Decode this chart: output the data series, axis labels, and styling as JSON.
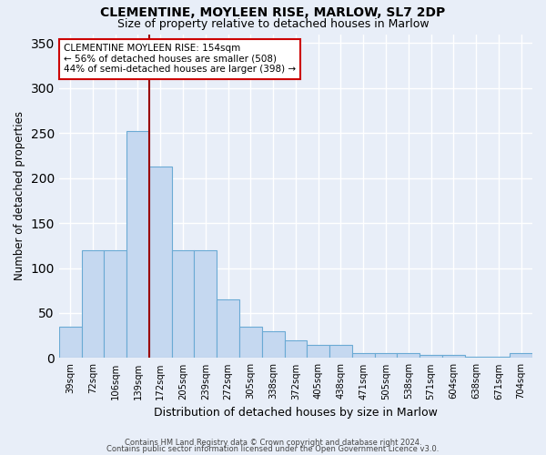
{
  "title1": "CLEMENTINE, MOYLEEN RISE, MARLOW, SL7 2DP",
  "title2": "Size of property relative to detached houses in Marlow",
  "xlabel": "Distribution of detached houses by size in Marlow",
  "ylabel": "Number of detached properties",
  "bar_labels": [
    "39sqm",
    "72sqm",
    "106sqm",
    "139sqm",
    "172sqm",
    "205sqm",
    "239sqm",
    "272sqm",
    "305sqm",
    "338sqm",
    "372sqm",
    "405sqm",
    "438sqm",
    "471sqm",
    "505sqm",
    "538sqm",
    "571sqm",
    "604sqm",
    "638sqm",
    "671sqm",
    "704sqm"
  ],
  "bar_values": [
    35,
    120,
    120,
    252,
    213,
    120,
    120,
    65,
    35,
    30,
    20,
    15,
    15,
    5,
    5,
    5,
    3,
    3,
    1,
    1,
    5
  ],
  "bar_color": "#c5d8f0",
  "bar_edge_color": "#6aaad4",
  "vline_color": "#990000",
  "annotation_title": "CLEMENTINE MOYLEEN RISE: 154sqm",
  "annotation_line1": "← 56% of detached houses are smaller (508)",
  "annotation_line2": "44% of semi-detached houses are larger (398) →",
  "annotation_box_color": "#ffffff",
  "annotation_box_edge": "#cc0000",
  "yticks": [
    0,
    50,
    100,
    150,
    200,
    250,
    300,
    350
  ],
  "background_color": "#e8eef8",
  "grid_color": "#ffffff",
  "footer1": "Contains HM Land Registry data © Crown copyright and database right 2024.",
  "footer2": "Contains public sector information licensed under the Open Government Licence v3.0."
}
